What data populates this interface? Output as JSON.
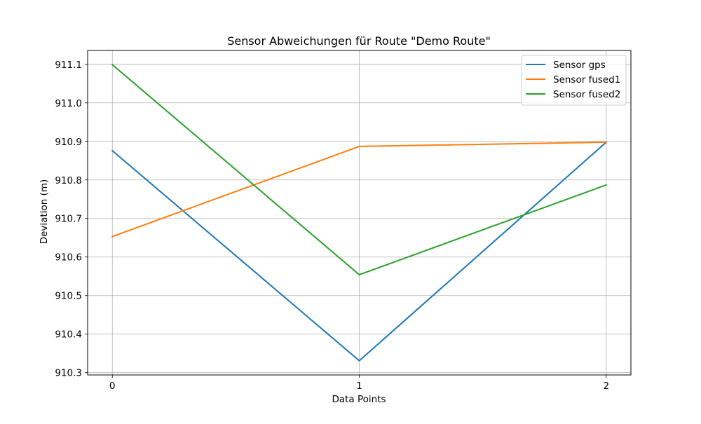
{
  "chart_data": {
    "type": "line",
    "title": "Sensor Abweichungen für Route \"Demo Route\"",
    "xlabel": "Data Points",
    "ylabel": "Deviation (m)",
    "x": [
      0,
      1,
      2
    ],
    "x_ticks": [
      "0",
      "1",
      "2"
    ],
    "xlim": [
      -0.1,
      2.1
    ],
    "ylim": [
      910.294,
      911.136
    ],
    "y_ticks": [
      "910.3",
      "910.4",
      "910.5",
      "910.6",
      "910.7",
      "910.8",
      "910.9",
      "911.0",
      "911.1"
    ],
    "grid": true,
    "legend_position": "top-right",
    "series": [
      {
        "name": "Sensor gps",
        "color": "#1f77b4",
        "values": [
          910.876,
          910.331,
          910.898
        ]
      },
      {
        "name": "Sensor fused1",
        "color": "#ff7f0e",
        "values": [
          910.653,
          910.887,
          910.898
        ]
      },
      {
        "name": "Sensor fused2",
        "color": "#2ca02c",
        "values": [
          911.099,
          910.554,
          910.787
        ]
      }
    ]
  }
}
